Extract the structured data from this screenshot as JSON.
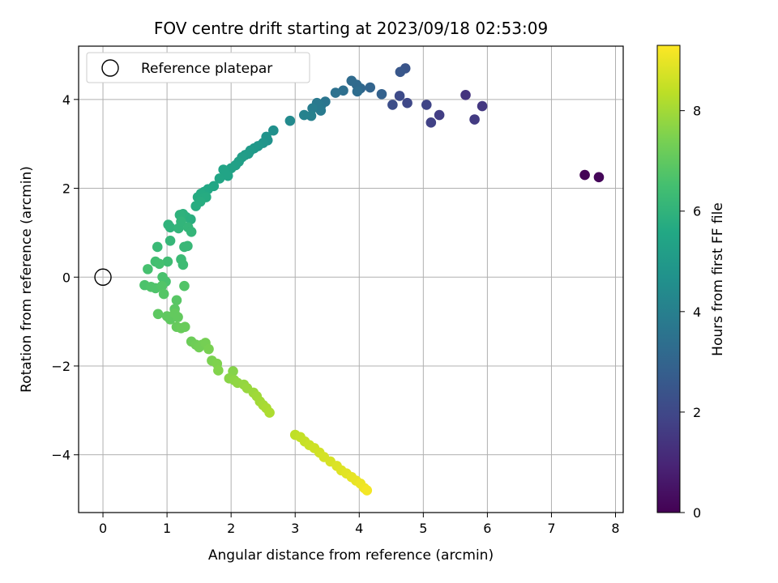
{
  "chart_data": {
    "type": "scatter",
    "title": "FOV centre drift starting at 2023/09/18 02:53:09",
    "xlabel": "Angular distance from reference (arcmin)",
    "ylabel": "Rotation from reference (arcmin)",
    "xlim": [
      -0.38,
      8.12
    ],
    "ylim": [
      -5.3,
      5.2
    ],
    "xticks": [
      0,
      1,
      2,
      3,
      4,
      5,
      6,
      7,
      8
    ],
    "yticks": [
      -4,
      -2,
      0,
      2,
      4
    ],
    "grid": true,
    "legend": {
      "placement": "top-left",
      "entries": [
        "Reference platepar"
      ]
    },
    "reference_point": {
      "x": 0,
      "y": 0
    },
    "colorbar": {
      "label": "Hours from first FF file",
      "range": [
        0,
        9.3
      ],
      "ticks": [
        0,
        2,
        4,
        6,
        8
      ],
      "colormap": "viridis"
    },
    "points": [
      {
        "x": 7.52,
        "y": 2.3,
        "h": 0.05
      },
      {
        "x": 7.74,
        "y": 2.25,
        "h": 0.15
      },
      {
        "x": 5.66,
        "y": 4.1,
        "h": 1.4
      },
      {
        "x": 5.92,
        "y": 3.85,
        "h": 1.5
      },
      {
        "x": 5.8,
        "y": 3.55,
        "h": 1.6
      },
      {
        "x": 5.25,
        "y": 3.65,
        "h": 1.7
      },
      {
        "x": 5.12,
        "y": 3.48,
        "h": 1.8
      },
      {
        "x": 5.05,
        "y": 3.88,
        "h": 1.9
      },
      {
        "x": 4.75,
        "y": 3.92,
        "h": 2.0
      },
      {
        "x": 4.63,
        "y": 4.08,
        "h": 2.1
      },
      {
        "x": 4.52,
        "y": 3.88,
        "h": 2.2
      },
      {
        "x": 4.72,
        "y": 4.7,
        "h": 2.4
      },
      {
        "x": 4.64,
        "y": 4.62,
        "h": 2.5
      },
      {
        "x": 4.35,
        "y": 4.12,
        "h": 2.9
      },
      {
        "x": 4.17,
        "y": 4.27,
        "h": 3.0
      },
      {
        "x": 4.02,
        "y": 4.25,
        "h": 3.1
      },
      {
        "x": 3.96,
        "y": 4.33,
        "h": 3.2
      },
      {
        "x": 3.88,
        "y": 4.42,
        "h": 3.25
      },
      {
        "x": 3.97,
        "y": 4.18,
        "h": 3.3
      },
      {
        "x": 3.75,
        "y": 4.2,
        "h": 3.4
      },
      {
        "x": 3.63,
        "y": 4.15,
        "h": 3.45
      },
      {
        "x": 3.47,
        "y": 3.95,
        "h": 3.6
      },
      {
        "x": 3.4,
        "y": 3.85,
        "h": 3.7
      },
      {
        "x": 3.34,
        "y": 3.92,
        "h": 3.75
      },
      {
        "x": 3.4,
        "y": 3.75,
        "h": 3.8
      },
      {
        "x": 3.27,
        "y": 3.8,
        "h": 3.9
      },
      {
        "x": 3.25,
        "y": 3.63,
        "h": 4.0
      },
      {
        "x": 3.14,
        "y": 3.65,
        "h": 4.1
      },
      {
        "x": 2.92,
        "y": 3.52,
        "h": 4.4
      },
      {
        "x": 2.66,
        "y": 3.3,
        "h": 4.6
      },
      {
        "x": 2.57,
        "y": 3.08,
        "h": 4.7
      },
      {
        "x": 2.55,
        "y": 3.16,
        "h": 4.75
      },
      {
        "x": 2.5,
        "y": 3.02,
        "h": 4.8
      },
      {
        "x": 2.42,
        "y": 2.95,
        "h": 4.9
      },
      {
        "x": 2.36,
        "y": 2.9,
        "h": 4.95
      },
      {
        "x": 2.3,
        "y": 2.85,
        "h": 5.0
      },
      {
        "x": 2.27,
        "y": 2.78,
        "h": 5.05
      },
      {
        "x": 2.22,
        "y": 2.75,
        "h": 5.1
      },
      {
        "x": 2.17,
        "y": 2.7,
        "h": 5.15
      },
      {
        "x": 2.12,
        "y": 2.6,
        "h": 5.2
      },
      {
        "x": 2.07,
        "y": 2.52,
        "h": 5.25
      },
      {
        "x": 2.0,
        "y": 2.45,
        "h": 5.3
      },
      {
        "x": 1.93,
        "y": 2.35,
        "h": 5.35
      },
      {
        "x": 1.95,
        "y": 2.28,
        "h": 5.4
      },
      {
        "x": 1.88,
        "y": 2.42,
        "h": 5.4
      },
      {
        "x": 1.82,
        "y": 2.22,
        "h": 5.45
      },
      {
        "x": 1.73,
        "y": 2.05,
        "h": 5.5
      },
      {
        "x": 1.64,
        "y": 1.98,
        "h": 5.55
      },
      {
        "x": 1.58,
        "y": 1.92,
        "h": 5.6
      },
      {
        "x": 1.53,
        "y": 1.88,
        "h": 5.65
      },
      {
        "x": 1.48,
        "y": 1.8,
        "h": 5.7
      },
      {
        "x": 1.61,
        "y": 1.8,
        "h": 5.7
      },
      {
        "x": 1.45,
        "y": 1.6,
        "h": 5.75
      },
      {
        "x": 1.52,
        "y": 1.7,
        "h": 5.75
      },
      {
        "x": 1.37,
        "y": 1.3,
        "h": 5.8
      },
      {
        "x": 1.3,
        "y": 1.35,
        "h": 5.85
      },
      {
        "x": 1.25,
        "y": 1.42,
        "h": 5.9
      },
      {
        "x": 1.2,
        "y": 1.4,
        "h": 5.95
      },
      {
        "x": 1.02,
        "y": 1.18,
        "h": 6.0
      },
      {
        "x": 1.05,
        "y": 1.12,
        "h": 6.0
      },
      {
        "x": 1.18,
        "y": 1.1,
        "h": 6.05
      },
      {
        "x": 1.22,
        "y": 1.25,
        "h": 6.05
      },
      {
        "x": 1.33,
        "y": 1.12,
        "h": 6.1
      },
      {
        "x": 1.38,
        "y": 1.02,
        "h": 6.1
      },
      {
        "x": 1.05,
        "y": 0.82,
        "h": 6.15
      },
      {
        "x": 1.27,
        "y": 0.68,
        "h": 6.2
      },
      {
        "x": 1.32,
        "y": 0.7,
        "h": 6.2
      },
      {
        "x": 0.85,
        "y": 0.68,
        "h": 6.25
      },
      {
        "x": 1.22,
        "y": 0.4,
        "h": 6.3
      },
      {
        "x": 1.25,
        "y": 0.28,
        "h": 6.35
      },
      {
        "x": 1.01,
        "y": 0.35,
        "h": 6.4
      },
      {
        "x": 0.82,
        "y": 0.35,
        "h": 6.45
      },
      {
        "x": 0.88,
        "y": 0.3,
        "h": 6.5
      },
      {
        "x": 0.7,
        "y": 0.18,
        "h": 6.55
      },
      {
        "x": 0.93,
        "y": 0.0,
        "h": 6.6
      },
      {
        "x": 0.98,
        "y": -0.1,
        "h": 6.6
      },
      {
        "x": 0.65,
        "y": -0.18,
        "h": 6.65
      },
      {
        "x": 0.75,
        "y": -0.22,
        "h": 6.7
      },
      {
        "x": 0.82,
        "y": -0.25,
        "h": 6.7
      },
      {
        "x": 0.92,
        "y": -0.2,
        "h": 6.75
      },
      {
        "x": 1.27,
        "y": -0.2,
        "h": 6.75
      },
      {
        "x": 0.95,
        "y": -0.38,
        "h": 6.8
      },
      {
        "x": 1.15,
        "y": -0.52,
        "h": 6.85
      },
      {
        "x": 1.12,
        "y": -0.72,
        "h": 6.9
      },
      {
        "x": 0.86,
        "y": -0.83,
        "h": 6.95
      },
      {
        "x": 1.0,
        "y": -0.88,
        "h": 7.0
      },
      {
        "x": 1.05,
        "y": -0.95,
        "h": 7.0
      },
      {
        "x": 1.12,
        "y": -0.82,
        "h": 7.05
      },
      {
        "x": 1.17,
        "y": -0.9,
        "h": 7.05
      },
      {
        "x": 1.15,
        "y": -1.12,
        "h": 7.1
      },
      {
        "x": 1.22,
        "y": -1.15,
        "h": 7.15
      },
      {
        "x": 1.28,
        "y": -1.12,
        "h": 7.15
      },
      {
        "x": 1.38,
        "y": -1.45,
        "h": 7.2
      },
      {
        "x": 1.45,
        "y": -1.52,
        "h": 7.25
      },
      {
        "x": 1.5,
        "y": -1.58,
        "h": 7.3
      },
      {
        "x": 1.55,
        "y": -1.52,
        "h": 7.3
      },
      {
        "x": 1.6,
        "y": -1.48,
        "h": 7.35
      },
      {
        "x": 1.65,
        "y": -1.62,
        "h": 7.4
      },
      {
        "x": 1.7,
        "y": -1.88,
        "h": 7.45
      },
      {
        "x": 1.78,
        "y": -1.95,
        "h": 7.5
      },
      {
        "x": 1.8,
        "y": -2.1,
        "h": 7.55
      },
      {
        "x": 2.03,
        "y": -2.12,
        "h": 7.6
      },
      {
        "x": 1.97,
        "y": -2.28,
        "h": 7.65
      },
      {
        "x": 2.05,
        "y": -2.32,
        "h": 7.7
      },
      {
        "x": 2.1,
        "y": -2.38,
        "h": 7.75
      },
      {
        "x": 2.2,
        "y": -2.42,
        "h": 7.8
      },
      {
        "x": 2.25,
        "y": -2.5,
        "h": 7.85
      },
      {
        "x": 2.35,
        "y": -2.6,
        "h": 7.9
      },
      {
        "x": 2.4,
        "y": -2.68,
        "h": 7.95
      },
      {
        "x": 2.45,
        "y": -2.8,
        "h": 8.0
      },
      {
        "x": 2.5,
        "y": -2.88,
        "h": 8.05
      },
      {
        "x": 2.55,
        "y": -2.95,
        "h": 8.1
      },
      {
        "x": 2.6,
        "y": -3.05,
        "h": 8.15
      },
      {
        "x": 3.0,
        "y": -3.55,
        "h": 8.4
      },
      {
        "x": 3.08,
        "y": -3.6,
        "h": 8.45
      },
      {
        "x": 3.15,
        "y": -3.7,
        "h": 8.5
      },
      {
        "x": 3.22,
        "y": -3.78,
        "h": 8.55
      },
      {
        "x": 3.3,
        "y": -3.85,
        "h": 8.6
      },
      {
        "x": 3.38,
        "y": -3.95,
        "h": 8.65
      },
      {
        "x": 3.45,
        "y": -4.05,
        "h": 8.7
      },
      {
        "x": 3.55,
        "y": -4.15,
        "h": 8.75
      },
      {
        "x": 3.65,
        "y": -4.25,
        "h": 8.8
      },
      {
        "x": 3.72,
        "y": -4.35,
        "h": 8.85
      },
      {
        "x": 3.8,
        "y": -4.42,
        "h": 8.9
      },
      {
        "x": 3.88,
        "y": -4.5,
        "h": 8.95
      },
      {
        "x": 3.95,
        "y": -4.58,
        "h": 9.0
      },
      {
        "x": 4.02,
        "y": -4.65,
        "h": 9.05
      },
      {
        "x": 4.08,
        "y": -4.75,
        "h": 9.1
      },
      {
        "x": 4.12,
        "y": -4.8,
        "h": 9.15
      }
    ]
  }
}
